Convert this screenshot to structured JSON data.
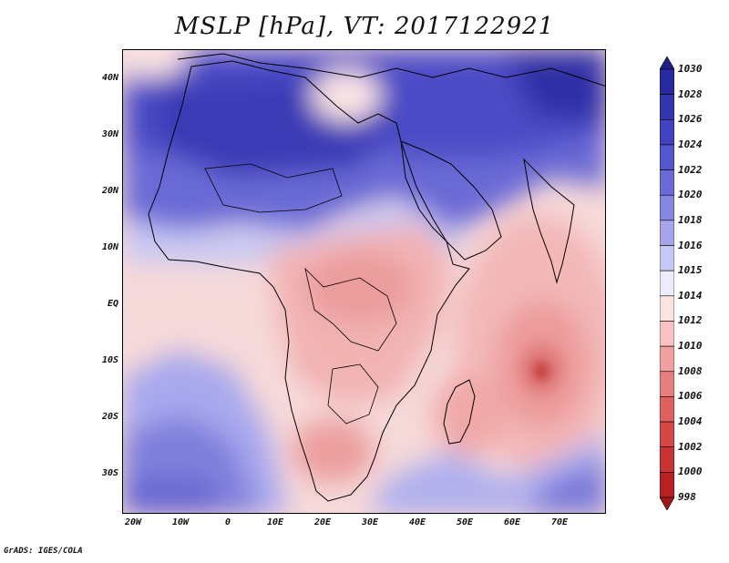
{
  "title": "MSLP [hPa], VT: 2017122921",
  "credit": "GrADS: IGES/COLA",
  "map": {
    "variable": "Mean sea level pressure",
    "region": "Africa, Middle East and Indian Ocean",
    "lat_labels": [
      "40N",
      "30N",
      "20N",
      "10N",
      "EQ",
      "10S",
      "20S",
      "30S"
    ],
    "lat_values": [
      40,
      30,
      20,
      10,
      0,
      -10,
      -20,
      -30
    ],
    "lon_labels": [
      "20W",
      "10W",
      "0",
      "10E",
      "20E",
      "30E",
      "40E",
      "50E",
      "60E",
      "70E"
    ],
    "lon_values": [
      -20,
      -10,
      0,
      10,
      20,
      30,
      40,
      50,
      60,
      70
    ],
    "lon_range": [
      -22,
      80
    ],
    "lat_range": [
      -37,
      45
    ]
  },
  "colorbar": {
    "levels": [
      "1030",
      "1028",
      "1026",
      "1024",
      "1022",
      "1020",
      "1018",
      "1016",
      "1015",
      "1014",
      "1012",
      "1010",
      "1008",
      "1006",
      "1004",
      "1002",
      "1000",
      "998"
    ],
    "colors": [
      "#1f1f8c",
      "#2a2aa0",
      "#3535b0",
      "#4343c0",
      "#5555cc",
      "#6b6bd8",
      "#8585e2",
      "#a5a5ec",
      "#c8c8f4",
      "#ececfb",
      "#fbe3e3",
      "#f6c2c2",
      "#f0a0a0",
      "#e87e7e",
      "#e06060",
      "#d64646",
      "#c83434",
      "#b82222",
      "#a41616"
    ]
  },
  "colors": {
    "high": "#4747c4",
    "neutral": "#fdf3f3",
    "low": "#f0a6a6",
    "coast": "#000000"
  }
}
